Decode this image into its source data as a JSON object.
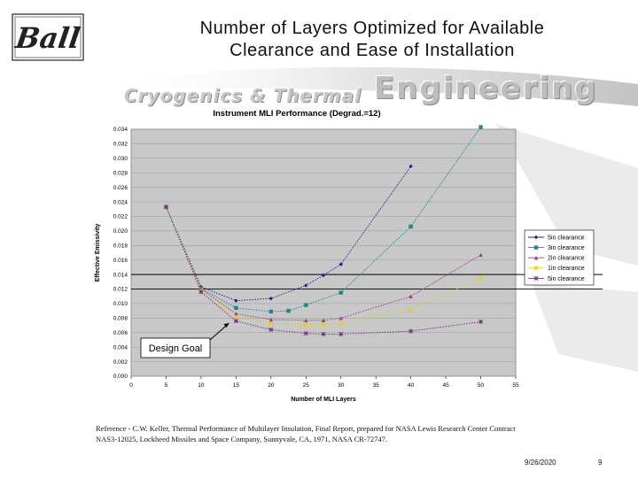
{
  "slide": {
    "title_line1": "Number of Layers Optimized for Available",
    "title_line2": "Clearance and Ease of Installation",
    "logo_text": "Ball",
    "banner_small": "Cryogenics & Thermal",
    "banner_big": "Engineering",
    "reference_line1": "Reference - C.W. Keller, Thermal Performance of Multilayer Insulation, Final Report, prepared for NASA Lewis Research Center Contract",
    "reference_line2": "NAS3-12025, Lockheed Missiles and Space Company, Sunnyvale, CA, 1971, NASA CR-72747.",
    "date": "9/26/2020",
    "page": "9"
  },
  "chart_data": {
    "type": "line",
    "title": "Instrument MLI Performance (Degrad.=12)",
    "xlabel": "Number of MLI Layers",
    "ylabel": "Effective Emissivity",
    "xlim": [
      0,
      55
    ],
    "ylim": [
      0.0,
      0.034
    ],
    "x_ticks": [
      "0",
      "5",
      "10",
      "15",
      "20",
      "25",
      "30",
      "35",
      "40",
      "45",
      "50",
      "55"
    ],
    "y_ticks": [
      "0.000",
      "0.002",
      "0.004",
      "0.006",
      "0.008",
      "0.010",
      "0.012",
      "0.014",
      "0.016",
      "0.018",
      "0.020",
      "0.022",
      "0.024",
      "0.026",
      "0.028",
      "0.030",
      "0.032",
      "0.034"
    ],
    "grid": "horizontal",
    "legend_position": "right",
    "reference_lines": [
      0.014,
      0.012
    ],
    "annotation": "Design Goal",
    "annotation_target": {
      "x": 14,
      "y": 0.0073
    },
    "series": [
      {
        "name": "5in clearance",
        "color": "#1f1f8f",
        "marker": "diamond",
        "x": [
          5,
          10,
          15,
          20,
          25,
          27.5,
          30,
          40
        ],
        "y": [
          0.0233,
          0.0123,
          0.0104,
          0.0107,
          0.0125,
          0.0139,
          0.0154,
          0.0289
        ]
      },
      {
        "name": "3in clearance",
        "color": "#1a8a8a",
        "marker": "square",
        "x": [
          5,
          10,
          15,
          20,
          22.5,
          25,
          30,
          40,
          50
        ],
        "y": [
          0.0233,
          0.0121,
          0.0094,
          0.0089,
          0.009,
          0.0098,
          0.0115,
          0.0206,
          0.0343
        ]
      },
      {
        "name": "2in clearance",
        "color": "#9a3a8a",
        "marker": "triangle",
        "x": [
          5,
          10,
          15,
          20,
          25,
          27.5,
          30,
          40,
          50
        ],
        "y": [
          0.0233,
          0.012,
          0.0086,
          0.0078,
          0.0077,
          0.0077,
          0.008,
          0.011,
          0.0167
        ]
      },
      {
        "name": "1in clearance",
        "color": "#e8d000",
        "marker": "x",
        "x": [
          5,
          10,
          15,
          20,
          25,
          27.5,
          30,
          40,
          50
        ],
        "y": [
          0.0233,
          0.0118,
          0.0082,
          0.0073,
          0.0071,
          0.0071,
          0.0073,
          0.0091,
          0.0135
        ]
      },
      {
        "name": "5in clearance",
        "color": "#7a2a8a",
        "marker": "star",
        "x": [
          5,
          10,
          15,
          20,
          25,
          27.5,
          30,
          40,
          50
        ],
        "y": [
          0.0233,
          0.0116,
          0.0076,
          0.0064,
          0.0059,
          0.0058,
          0.0058,
          0.0062,
          0.0075
        ]
      }
    ]
  }
}
